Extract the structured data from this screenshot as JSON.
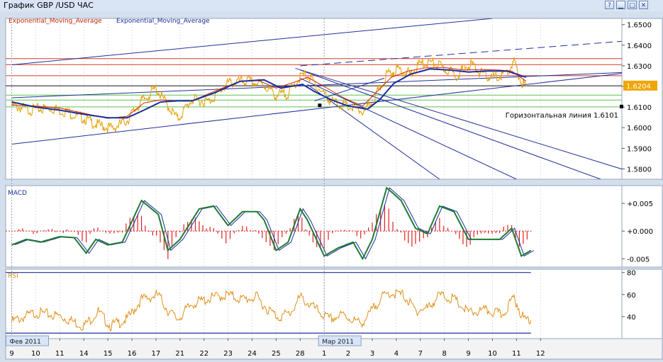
{
  "window": {
    "title": "График GBP /USD  ЧАС",
    "buttons": [
      {
        "name": "help-button",
        "glyph": "?"
      },
      {
        "name": "minimize-button",
        "glyph": "▁"
      },
      {
        "name": "maximize-button",
        "glyph": "□"
      },
      {
        "name": "close-button",
        "glyph": "✕"
      }
    ]
  },
  "colors": {
    "price": "#e6a000",
    "ema_red": "#cc2200",
    "ema_blue": "#1b2d9e",
    "trend": "#23309a",
    "resistance": "#d33a2a",
    "support": "#5fbf52",
    "macd_line": "#1f7a33",
    "macd_signal": "#1b2d9e",
    "macd_hist": "#e02020",
    "rsi": "#e0901a"
  },
  "chart_data": {
    "type": "line",
    "price_panel": {
      "legend": [
        {
          "label": "Exponential_Moving_Average",
          "color": "#cc2200"
        },
        {
          "label": "Exponential_Moving_Average",
          "color": "#1b2d9e"
        }
      ],
      "y_ticks": [
        "1.6500",
        "1.6400",
        "1.6300",
        "1.6200",
        "1.6100",
        "1.6000",
        "1.5900",
        "1.5800"
      ],
      "ylim": [
        1.575,
        1.653
      ],
      "current_price_label": "1.6204",
      "current_price": 1.6204,
      "hline_label": "Горизонтальная линия 1.6101",
      "hline_value": 1.6101,
      "horizontal_levels": [
        {
          "value": 1.6335,
          "color": "#d33a2a"
        },
        {
          "value": 1.6306,
          "color": "#d33a2a"
        },
        {
          "value": 1.6252,
          "color": "#d33a2a"
        },
        {
          "value": 1.6203,
          "color": "#111111"
        },
        {
          "value": 1.6158,
          "color": "#5fbf52"
        },
        {
          "value": 1.6134,
          "color": "#5fbf52"
        },
        {
          "value": 1.6101,
          "color": "#5fbf52"
        }
      ],
      "price_keypoints": [
        [
          0,
          1.612
        ],
        [
          0.8,
          1.61
        ],
        [
          1.6,
          1.611
        ],
        [
          2.3,
          1.609
        ],
        [
          3,
          1.606
        ],
        [
          3.5,
          1.603
        ],
        [
          4.2,
          1.601
        ],
        [
          4.8,
          1.605
        ],
        [
          5.4,
          1.614
        ],
        [
          6,
          1.6205
        ],
        [
          6.5,
          1.612
        ],
        [
          6.9,
          1.6055
        ],
        [
          7.5,
          1.615
        ],
        [
          8.2,
          1.614
        ],
        [
          9,
          1.623
        ],
        [
          9.8,
          1.624
        ],
        [
          10.5,
          1.622
        ],
        [
          11,
          1.617
        ],
        [
          11.5,
          1.618
        ],
        [
          12,
          1.626
        ],
        [
          12.3,
          1.627
        ],
        [
          12.8,
          1.62
        ],
        [
          13.3,
          1.614
        ],
        [
          14,
          1.6115
        ],
        [
          14.7,
          1.609
        ],
        [
          15.1,
          1.6155
        ],
        [
          15.6,
          1.627
        ],
        [
          16.1,
          1.63
        ],
        [
          16.6,
          1.627
        ],
        [
          17,
          1.6325
        ],
        [
          17.5,
          1.633
        ],
        [
          18,
          1.63
        ],
        [
          18.5,
          1.627
        ],
        [
          19.1,
          1.6325
        ],
        [
          19.6,
          1.627
        ],
        [
          20.1,
          1.6255
        ],
        [
          20.6,
          1.628
        ],
        [
          20.9,
          1.633
        ],
        [
          21.2,
          1.6235
        ],
        [
          21.4,
          1.6215
        ]
      ],
      "ema_red_keypoints": [
        [
          0,
          1.611
        ],
        [
          1,
          1.6105
        ],
        [
          2,
          1.6095
        ],
        [
          3,
          1.607
        ],
        [
          4,
          1.6045
        ],
        [
          4.8,
          1.6055
        ],
        [
          5.5,
          1.612
        ],
        [
          6.2,
          1.6135
        ],
        [
          6.9,
          1.613
        ],
        [
          7.5,
          1.613
        ],
        [
          8.5,
          1.618
        ],
        [
          9.5,
          1.6225
        ],
        [
          10.3,
          1.6228
        ],
        [
          11,
          1.6192
        ],
        [
          11.8,
          1.6222
        ],
        [
          12.3,
          1.6245
        ],
        [
          13,
          1.62
        ],
        [
          13.8,
          1.6145
        ],
        [
          14.6,
          1.6105
        ],
        [
          15.2,
          1.6175
        ],
        [
          15.8,
          1.6245
        ],
        [
          16.5,
          1.6275
        ],
        [
          17.2,
          1.629
        ],
        [
          18,
          1.6292
        ],
        [
          18.8,
          1.628
        ],
        [
          19.5,
          1.6282
        ],
        [
          20.2,
          1.628
        ],
        [
          20.8,
          1.6275
        ],
        [
          21.4,
          1.6225
        ]
      ],
      "ema_blue_keypoints": [
        [
          0,
          1.6125
        ],
        [
          1,
          1.61
        ],
        [
          2,
          1.6085
        ],
        [
          3,
          1.6065
        ],
        [
          4,
          1.6048
        ],
        [
          4.8,
          1.6048
        ],
        [
          5.5,
          1.6085
        ],
        [
          6.2,
          1.6125
        ],
        [
          6.9,
          1.613
        ],
        [
          7.5,
          1.613
        ],
        [
          8.5,
          1.6172
        ],
        [
          9.5,
          1.6225
        ],
        [
          10.5,
          1.6232
        ],
        [
          11.2,
          1.6192
        ],
        [
          12.1,
          1.621
        ],
        [
          12.6,
          1.6175
        ],
        [
          13.3,
          1.6135
        ],
        [
          14,
          1.6105
        ],
        [
          14.8,
          1.609
        ],
        [
          15.3,
          1.6135
        ],
        [
          15.9,
          1.6215
        ],
        [
          16.6,
          1.626
        ],
        [
          17.4,
          1.6285
        ],
        [
          18.2,
          1.628
        ],
        [
          19,
          1.627
        ],
        [
          19.8,
          1.6275
        ],
        [
          20.6,
          1.6275
        ],
        [
          21.4,
          1.6245
        ]
      ],
      "trendlines": [
        {
          "from": [
            0,
            1.6305
          ],
          "to": [
            20,
            1.653
          ],
          "dash": false
        },
        {
          "from": [
            12,
            1.63
          ],
          "to": [
            25.5,
            1.642
          ],
          "dash": true
        },
        {
          "from": [
            0,
            1.592
          ],
          "to": [
            25.5,
            1.6265
          ],
          "dash": false
        },
        {
          "from": [
            0,
            1.6145
          ],
          "to": [
            25.5,
            1.6268
          ],
          "dash": false
        },
        {
          "from": [
            11.8,
            1.6288
          ],
          "to": [
            25.5,
            1.5795
          ],
          "dash": false
        },
        {
          "from": [
            12,
            1.628
          ],
          "to": [
            24.5,
            1.575
          ],
          "dash": false
        },
        {
          "from": [
            12,
            1.624
          ],
          "to": [
            21,
            1.575
          ],
          "dash": false
        },
        {
          "from": [
            12.3,
            1.621
          ],
          "to": [
            17.8,
            1.575
          ],
          "dash": false
        },
        {
          "from": [
            12.6,
            1.613
          ],
          "to": [
            15.5,
            1.624
          ],
          "dash": false
        }
      ]
    },
    "macd_panel": {
      "label": "MACD",
      "y_ticks": [
        "+0.005",
        "+0.000",
        "-0.005"
      ],
      "ylim": [
        -0.0065,
        0.0082
      ],
      "macd_keypoints": [
        [
          0,
          -0.0025
        ],
        [
          0.6,
          -0.0015
        ],
        [
          1.2,
          -0.002
        ],
        [
          2,
          -0.001
        ],
        [
          2.6,
          -0.0012
        ],
        [
          3.1,
          -0.004
        ],
        [
          3.5,
          -0.0015
        ],
        [
          4,
          -0.0025
        ],
        [
          4.6,
          -0.002
        ],
        [
          5.4,
          0.0055
        ],
        [
          6.1,
          0.003
        ],
        [
          6.5,
          -0.0035
        ],
        [
          7,
          -0.0015
        ],
        [
          7.8,
          0.004
        ],
        [
          8.4,
          0.0045
        ],
        [
          9,
          0.001
        ],
        [
          9.6,
          0.0035
        ],
        [
          10.2,
          0.0035
        ],
        [
          10.5,
          0.002
        ],
        [
          11,
          -0.0035
        ],
        [
          11.5,
          -0.002
        ],
        [
          12,
          0.004
        ],
        [
          12.3,
          0.002
        ],
        [
          13,
          -0.0045
        ],
        [
          13.6,
          -0.003
        ],
        [
          14.2,
          -0.002
        ],
        [
          14.6,
          -0.005
        ],
        [
          15,
          -0.0015
        ],
        [
          15.6,
          0.0078
        ],
        [
          16.2,
          0.0055
        ],
        [
          16.8,
          0.0005
        ],
        [
          17.3,
          -0.0005
        ],
        [
          17.8,
          0.0045
        ],
        [
          18.4,
          0.0035
        ],
        [
          19,
          -0.0015
        ],
        [
          19.6,
          -0.0015
        ],
        [
          20.3,
          -0.0015
        ],
        [
          20.8,
          0.0005
        ],
        [
          21.2,
          -0.0045
        ],
        [
          21.6,
          -0.0035
        ]
      ]
    },
    "rsi_panel": {
      "label": "RSI",
      "y_ticks": [
        "80",
        "60",
        "40"
      ],
      "ylim": [
        20,
        83
      ],
      "upper": 80,
      "lower": 25,
      "rsi_keypoints": [
        [
          0,
          38
        ],
        [
          1,
          46
        ],
        [
          2,
          43
        ],
        [
          3,
          34
        ],
        [
          3.6,
          47
        ],
        [
          4.1,
          34
        ],
        [
          4.8,
          40
        ],
        [
          5.4,
          58
        ],
        [
          6.1,
          62
        ],
        [
          6.5,
          48
        ],
        [
          6.9,
          40
        ],
        [
          7.5,
          54
        ],
        [
          8.4,
          60
        ],
        [
          9,
          62
        ],
        [
          9.6,
          58
        ],
        [
          10.2,
          60
        ],
        [
          10.6,
          50
        ],
        [
          11.1,
          42
        ],
        [
          11.6,
          46
        ],
        [
          12,
          60
        ],
        [
          12.6,
          50
        ],
        [
          13.2,
          40
        ],
        [
          13.8,
          44
        ],
        [
          14.5,
          36
        ],
        [
          14.8,
          42
        ],
        [
          15.3,
          58
        ],
        [
          15.7,
          64
        ],
        [
          16.3,
          62
        ],
        [
          16.8,
          48
        ],
        [
          17.3,
          50
        ],
        [
          17.8,
          62
        ],
        [
          18.4,
          58
        ],
        [
          19,
          46
        ],
        [
          19.8,
          48
        ],
        [
          20.4,
          44
        ],
        [
          20.9,
          60
        ],
        [
          21.3,
          40
        ],
        [
          21.6,
          41
        ]
      ]
    },
    "x_tick_labels": [
      "9",
      "10",
      "11",
      "14",
      "15",
      "16",
      "17",
      "21",
      "22",
      "23",
      "24",
      "25",
      "28",
      "1",
      "2",
      "3",
      "4",
      "7",
      "8",
      "9",
      "10",
      "11",
      "12"
    ],
    "x_ranges": [
      {
        "label": "Фев 2011",
        "at": 0
      },
      {
        "label": "Мар 2011",
        "at": 13
      }
    ]
  }
}
